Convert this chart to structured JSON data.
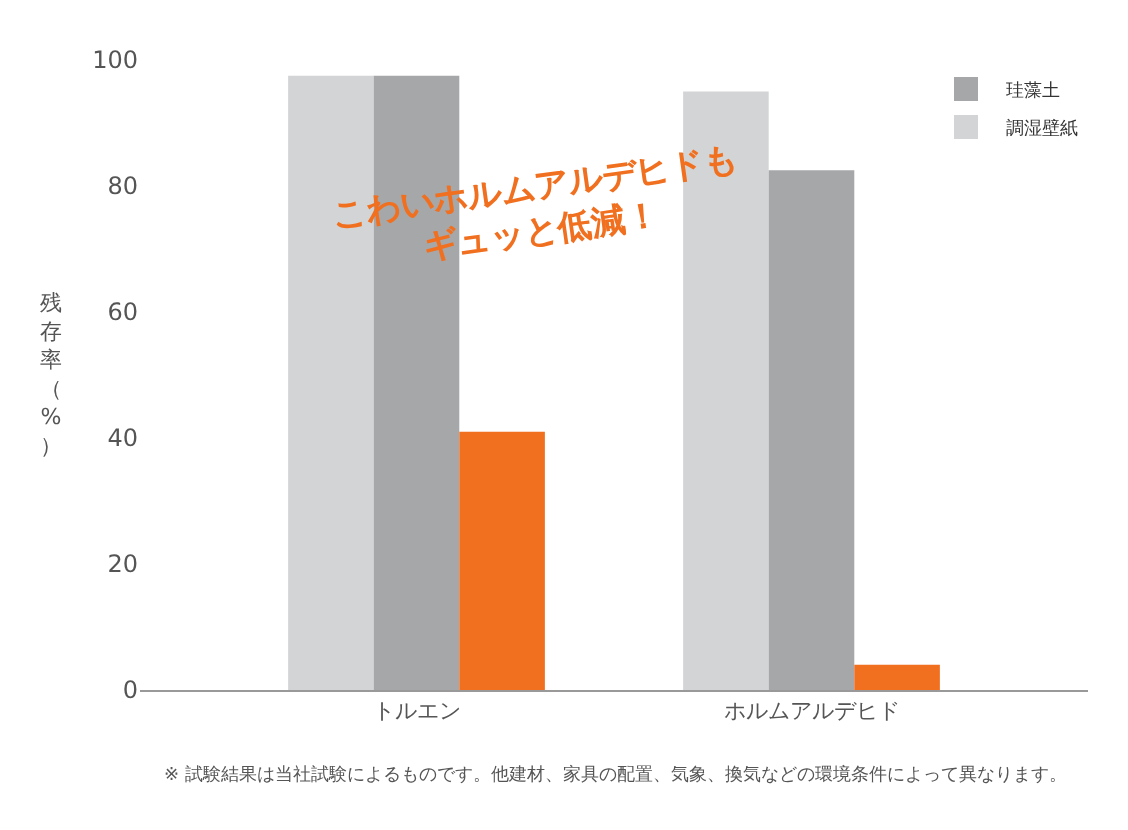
{
  "chart_data": {
    "type": "bar",
    "ylabel": "残存率（%）",
    "categories": [
      "トルエン",
      "ホルムアルデヒド"
    ],
    "series": [
      {
        "name": "調湿壁紙",
        "color": "#d3d4d5",
        "values": [
          97.5,
          95
        ]
      },
      {
        "name": "珪藻土",
        "color": "#a6a7a9",
        "values": [
          97.5,
          82.5
        ]
      },
      {
        "color": "#f07020",
        "values": [
          41,
          4
        ]
      }
    ],
    "ylim": [
      0,
      100
    ],
    "yticks": [
      0,
      20,
      40,
      60,
      80,
      100
    ],
    "legend": "top right",
    "annotations": [
      "こわいホルムアルデヒドも\nギュッと低減！",
      "※ 試験結果は当社試験によるものです。他建材、家具の配置、気象、換気などの環境条件によって異なります。"
    ]
  }
}
